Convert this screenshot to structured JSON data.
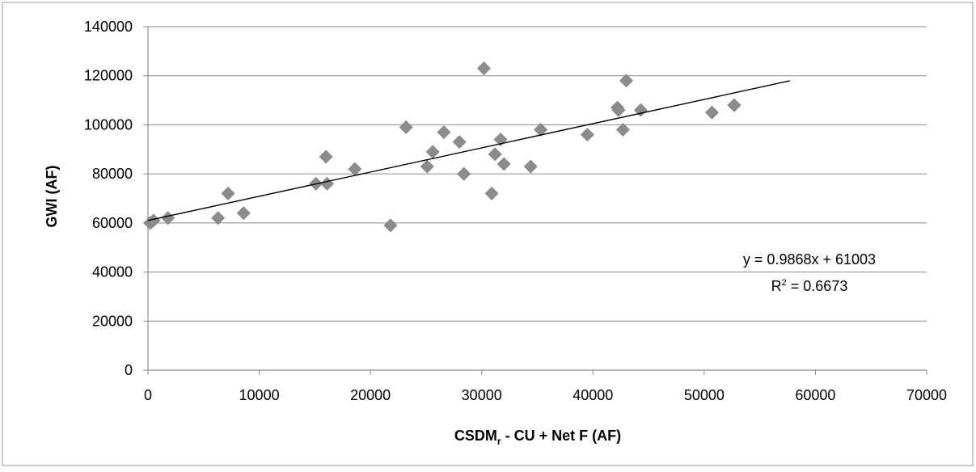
{
  "chart_data": {
    "type": "scatter",
    "xlabel_main": "CSDM",
    "xlabel_sub": "r",
    "xlabel_rest": " - CU + Net F (AF)",
    "ylabel": "GWI (AF)",
    "xlim": [
      0,
      70000
    ],
    "ylim": [
      0,
      140000
    ],
    "x_ticks": [
      0,
      10000,
      20000,
      30000,
      40000,
      50000,
      60000,
      70000
    ],
    "y_ticks": [
      0,
      20000,
      40000,
      60000,
      80000,
      100000,
      120000,
      140000
    ],
    "x_tick_labels": [
      "0",
      "10000",
      "20000",
      "30000",
      "40000",
      "50000",
      "60000",
      "70000"
    ],
    "y_tick_labels": [
      "0",
      "20000",
      "40000",
      "60000",
      "80000",
      "100000",
      "120000",
      "140000"
    ],
    "grid": "horizontal",
    "points": [
      {
        "x": 200,
        "y": 60000
      },
      {
        "x": 500,
        "y": 61000
      },
      {
        "x": 1800,
        "y": 62000
      },
      {
        "x": 6300,
        "y": 62000
      },
      {
        "x": 7200,
        "y": 72000
      },
      {
        "x": 8600,
        "y": 64000
      },
      {
        "x": 15100,
        "y": 76000
      },
      {
        "x": 16000,
        "y": 87000
      },
      {
        "x": 16100,
        "y": 76000
      },
      {
        "x": 18600,
        "y": 82000
      },
      {
        "x": 21800,
        "y": 59000
      },
      {
        "x": 23200,
        "y": 99000
      },
      {
        "x": 25100,
        "y": 83000
      },
      {
        "x": 25600,
        "y": 89000
      },
      {
        "x": 26600,
        "y": 97000
      },
      {
        "x": 28000,
        "y": 93000
      },
      {
        "x": 28400,
        "y": 80000
      },
      {
        "x": 30200,
        "y": 123000
      },
      {
        "x": 30900,
        "y": 72000
      },
      {
        "x": 31200,
        "y": 88000
      },
      {
        "x": 31700,
        "y": 94000
      },
      {
        "x": 32000,
        "y": 84000
      },
      {
        "x": 34400,
        "y": 83000
      },
      {
        "x": 35300,
        "y": 98000
      },
      {
        "x": 39500,
        "y": 96000
      },
      {
        "x": 42200,
        "y": 107000
      },
      {
        "x": 42300,
        "y": 106000
      },
      {
        "x": 42700,
        "y": 98000
      },
      {
        "x": 43000,
        "y": 118000
      },
      {
        "x": 44300,
        "y": 106000
      },
      {
        "x": 50700,
        "y": 105000
      },
      {
        "x": 52700,
        "y": 108000
      }
    ],
    "trendline": {
      "slope": 0.9868,
      "intercept": 61003,
      "x_range": [
        0,
        57700
      ],
      "equation": "y = 0.9868x + 61003",
      "r2_label": "R",
      "r2_sup": "2",
      "r2_value": " = 0.6673"
    },
    "colors": {
      "marker": "#8c8c8c",
      "grid": "#8c8c8c",
      "trendline": "#000000",
      "axis": "#8c8c8c"
    }
  }
}
